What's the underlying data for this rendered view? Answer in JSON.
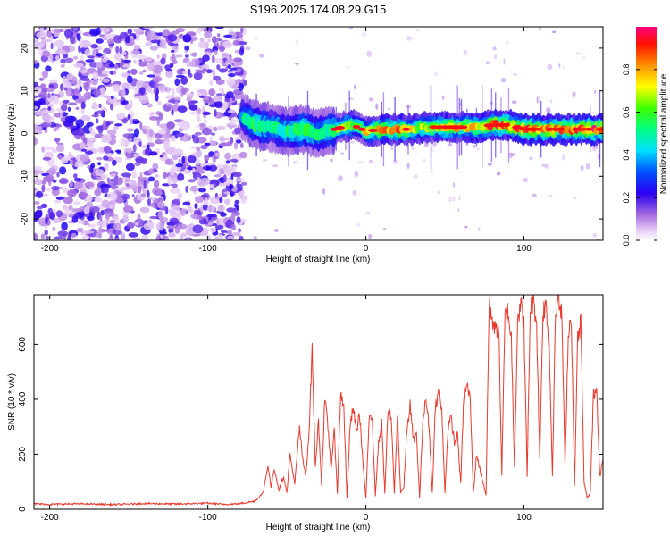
{
  "title": "S196.2025.174.08.29.G15",
  "chart_data": [
    {
      "type": "heatmap",
      "title": "S196.2025.174.08.29.G15",
      "xlabel": "Height of straight line (km)",
      "ylabel": "Frequency (Hz)",
      "xlim": [
        -210,
        150
      ],
      "ylim": [
        -25,
        25
      ],
      "xticks": [
        -200,
        -100,
        0,
        100
      ],
      "yticks": [
        -20,
        -10,
        0,
        10,
        20
      ],
      "colorbar": {
        "label": "Normalized spectral amplitude",
        "range": [
          0,
          1
        ],
        "ticks": [
          "0.0",
          "0.2",
          "0.4",
          "0.6",
          "0.8"
        ]
      },
      "noise_region_x": [
        -210,
        -77
      ],
      "ridge": {
        "x": [
          -78,
          -70,
          -60,
          -50,
          -40,
          -30,
          -20,
          -10,
          -5,
          0,
          10,
          20,
          30,
          40,
          50,
          60,
          70,
          80,
          90,
          100,
          110,
          120,
          130,
          140,
          150
        ],
        "y": [
          4,
          2,
          1.5,
          0.5,
          1,
          0,
          1,
          2,
          1.5,
          0.5,
          1,
          1,
          1,
          1.5,
          1.5,
          1.5,
          1.5,
          2,
          2,
          1,
          1,
          1,
          1,
          1,
          1
        ],
        "amplitude": [
          0.5,
          0.6,
          0.5,
          0.55,
          0.6,
          0.5,
          0.6,
          0.75,
          0.6,
          0.75,
          0.8,
          0.85,
          0.75,
          0.7,
          0.85,
          0.75,
          0.8,
          0.9,
          0.9,
          0.95,
          0.95,
          0.9,
          0.95,
          0.95,
          0.9
        ]
      }
    },
    {
      "type": "line",
      "xlabel": "Height of straight line (km)",
      "ylabel": "SNR (10 * v/v)",
      "xlim": [
        -210,
        150
      ],
      "ylim": [
        0,
        780
      ],
      "xticks": [
        -200,
        -100,
        0,
        100
      ],
      "yticks": [
        0,
        200,
        400,
        600
      ],
      "color": "#e8392e",
      "series": [
        {
          "x": [
            -210,
            -200,
            -180,
            -160,
            -140,
            -120,
            -100,
            -90,
            -80,
            -75,
            -70,
            -65,
            -62,
            -60,
            -58,
            -55,
            -52,
            -50,
            -48,
            -45,
            -42,
            -40,
            -38,
            -36,
            -34,
            -32,
            -30,
            -28,
            -26,
            -24,
            -22,
            -20,
            -18,
            -16,
            -14,
            -12,
            -10,
            -8,
            -6,
            -4,
            -2,
            0,
            2,
            4,
            6,
            8,
            10,
            12,
            14,
            16,
            18,
            20,
            22,
            24,
            26,
            28,
            30,
            32,
            34,
            36,
            38,
            40,
            42,
            44,
            46,
            48,
            50,
            52,
            54,
            56,
            58,
            60,
            62,
            64,
            66,
            68,
            70,
            72,
            74,
            76,
            78,
            80,
            82,
            84,
            86,
            88,
            90,
            92,
            94,
            96,
            98,
            100,
            102,
            104,
            106,
            108,
            110,
            112,
            114,
            116,
            118,
            120,
            122,
            124,
            126,
            128,
            130,
            132,
            134,
            136,
            138,
            140,
            142,
            144,
            146,
            148,
            150
          ],
          "y": [
            20,
            18,
            20,
            17,
            21,
            19,
            22,
            18,
            20,
            25,
            30,
            60,
            160,
            80,
            150,
            70,
            120,
            60,
            200,
            90,
            300,
            180,
            120,
            280,
            580,
            150,
            320,
            90,
            400,
            300,
            150,
            280,
            60,
            420,
            380,
            40,
            300,
            370,
            280,
            350,
            180,
            40,
            320,
            330,
            50,
            240,
            310,
            60,
            360,
            330,
            60,
            340,
            60,
            80,
            290,
            380,
            250,
            270,
            40,
            320,
            400,
            300,
            60,
            380,
            420,
            360,
            60,
            300,
            330,
            240,
            270,
            90,
            420,
            450,
            400,
            60,
            200,
            150,
            100,
            50,
            740,
            700,
            640,
            680,
            120,
            700,
            720,
            620,
            160,
            700,
            740,
            680,
            120,
            730,
            760,
            680,
            180,
            720,
            740,
            600,
            120,
            740,
            760,
            700,
            150,
            640,
            700,
            80,
            620,
            680,
            100,
            40,
            60,
            420,
            440,
            120,
            180
          ]
        }
      ]
    }
  ]
}
